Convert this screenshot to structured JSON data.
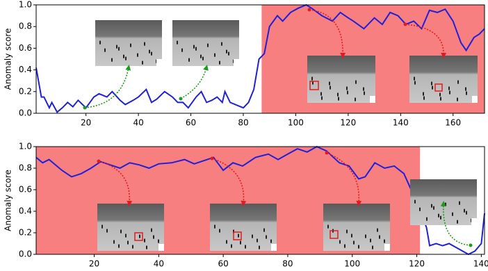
{
  "chart_data": [
    {
      "type": "line",
      "ylabel": "Anomaly score",
      "xlim": [
        1,
        172
      ],
      "ylim": [
        0,
        1
      ],
      "xticks": [
        20,
        40,
        60,
        80,
        100,
        120,
        140,
        160
      ],
      "yticks": [
        {
          "value": 0,
          "label": "0.0"
        },
        0.2,
        0.4,
        0.6,
        0.8,
        {
          "value": 1,
          "label": "1.0"
        }
      ],
      "shaded": [
        87,
        172
      ],
      "shade_color": "#f77f7f",
      "series": [
        {
          "color": "#1f1fdc",
          "x": [
            1,
            3,
            4,
            6,
            7,
            9,
            11,
            13,
            15,
            17,
            20,
            23,
            25,
            28,
            30,
            33,
            35,
            38,
            40,
            43,
            45,
            47,
            50,
            53,
            55,
            57,
            59,
            62,
            64,
            66,
            68,
            70,
            72,
            73,
            75,
            78,
            80,
            82,
            84,
            86,
            88,
            90,
            93,
            95,
            98,
            101,
            104,
            106,
            110,
            114,
            117,
            120,
            122,
            126,
            130,
            133,
            136,
            139,
            142,
            145,
            148,
            151,
            154,
            157,
            160,
            163,
            165,
            168,
            170,
            172
          ],
          "values": [
            0.42,
            0.15,
            0.15,
            0.05,
            0.1,
            0.01,
            0.05,
            0.1,
            0.06,
            0.12,
            0.05,
            0.15,
            0.18,
            0.15,
            0.2,
            0.12,
            0.08,
            0.12,
            0.15,
            0.22,
            0.1,
            0.13,
            0.2,
            0.15,
            0.1,
            0.1,
            0.05,
            0.15,
            0.2,
            0.1,
            0.12,
            0.15,
            0.1,
            0.2,
            0.1,
            0.07,
            0.05,
            0.1,
            0.22,
            0.5,
            0.55,
            0.8,
            0.9,
            0.85,
            0.93,
            0.97,
            1.0,
            0.97,
            0.9,
            0.85,
            0.93,
            0.88,
            0.85,
            0.78,
            0.88,
            0.82,
            0.93,
            0.9,
            0.82,
            0.85,
            0.78,
            0.95,
            0.93,
            0.96,
            0.85,
            0.65,
            0.58,
            0.7,
            0.73,
            0.78
          ]
        }
      ]
    },
    {
      "type": "line",
      "ylabel": "Anomaly score",
      "xlim": [
        2,
        141
      ],
      "ylim": [
        0,
        1
      ],
      "xticks": [
        20,
        40,
        60,
        80,
        100,
        120,
        140
      ],
      "yticks": [
        {
          "value": 0,
          "label": "0.0"
        },
        0.2,
        0.4,
        0.6,
        0.8,
        {
          "value": 1,
          "label": "1.0"
        }
      ],
      "shaded": [
        2,
        121
      ],
      "shade_color": "#f77f7f",
      "series": [
        {
          "color": "#1f1fdc",
          "x": [
            2,
            4,
            6,
            10,
            13,
            16,
            19,
            22,
            25,
            28,
            31,
            34,
            37,
            40,
            44,
            48,
            51,
            54,
            57,
            60,
            63,
            66,
            70,
            74,
            77,
            80,
            83,
            86,
            89,
            92,
            96,
            99,
            102,
            104,
            107,
            110,
            113,
            116,
            119,
            121,
            123,
            124,
            126,
            128,
            130,
            133,
            136,
            138,
            140,
            141
          ],
          "values": [
            0.9,
            0.85,
            0.88,
            0.78,
            0.72,
            0.75,
            0.8,
            0.86,
            0.83,
            0.8,
            0.85,
            0.83,
            0.8,
            0.84,
            0.85,
            0.88,
            0.84,
            0.87,
            0.9,
            0.78,
            0.85,
            0.82,
            0.9,
            0.93,
            0.88,
            0.93,
            0.98,
            0.95,
            1.0,
            0.96,
            0.85,
            0.82,
            0.7,
            0.72,
            0.85,
            0.8,
            0.82,
            0.75,
            0.55,
            0.4,
            0.25,
            0.08,
            0.1,
            0.08,
            0.1,
            0.05,
            0.0,
            0.03,
            0.1,
            0.38
          ]
        }
      ]
    }
  ]
}
